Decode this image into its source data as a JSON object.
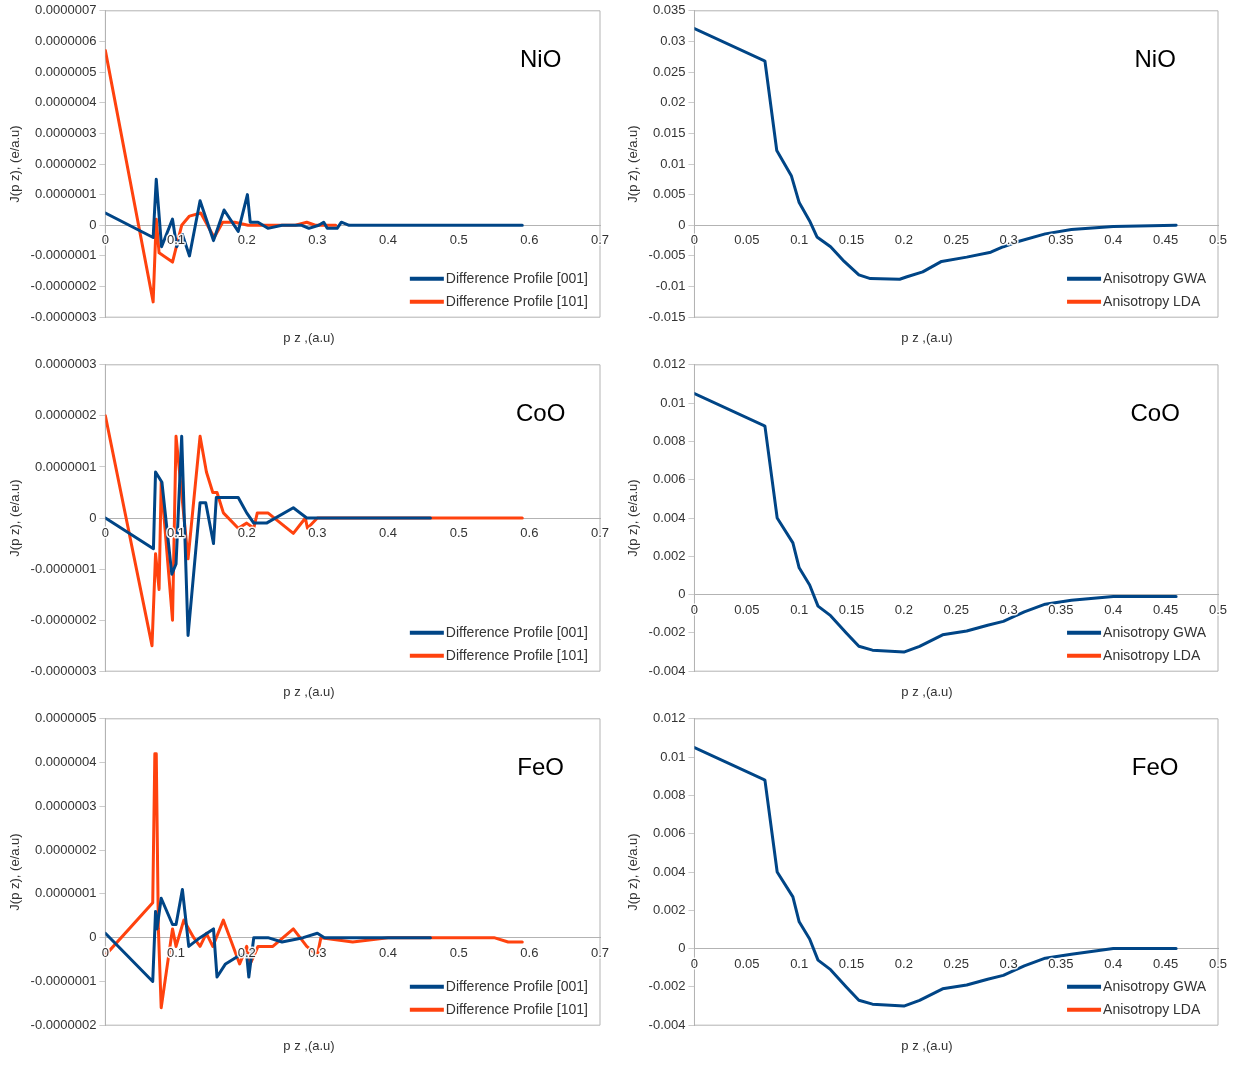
{
  "chart_data": [
    {
      "type": "line",
      "title": "NiO",
      "xlabel": "p z ,(a.u)",
      "ylabel": "J(p z), (e/a.u)",
      "xlim": [
        0,
        0.7
      ],
      "xticks": [
        0,
        0.1,
        0.2,
        0.3,
        0.4,
        0.5,
        0.6,
        0.7
      ],
      "ylim": [
        -3e-07,
        7e-07
      ],
      "yticks": [
        {
          "value": -3e-07,
          "label": "-0.0000003"
        },
        {
          "value": -2e-07,
          "label": "-0.0000002"
        },
        {
          "value": -1e-07,
          "label": "-0.0000001"
        },
        0,
        {
          "value": 1e-07,
          "label": "0.0000001"
        },
        {
          "value": 2e-07,
          "label": "0.0000002"
        },
        {
          "value": 3e-07,
          "label": "0.0000003"
        },
        {
          "value": 4e-07,
          "label": "0.0000004"
        },
        {
          "value": 5e-07,
          "label": "0.0000005"
        },
        {
          "value": 6e-07,
          "label": "0.0000006"
        },
        {
          "value": 7e-07,
          "label": "0.0000007"
        }
      ],
      "legend": "bottom right",
      "marker": "none",
      "series": [
        {
          "name": "Difference Profile [001]",
          "color": "#004586",
          "x": [
            0,
            0.0676,
            0.072,
            0.0795,
            0.095,
            0.101,
            0.109,
            0.119,
            0.134,
            0.153,
            0.168,
            0.188,
            0.201,
            0.205,
            0.216,
            0.23,
            0.25,
            0.278,
            0.288,
            0.302,
            0.309,
            0.314,
            0.328,
            0.334,
            0.345,
            0.59
          ],
          "values": [
            4e-08,
            -4e-08,
            1.5e-07,
            -7e-08,
            2e-08,
            -7e-08,
            -3e-08,
            -1e-07,
            8e-08,
            -5e-08,
            5e-08,
            -2e-08,
            1e-07,
            1e-08,
            1e-08,
            -1e-08,
            0,
            0,
            -1e-08,
            0,
            1e-08,
            -1e-08,
            -1e-08,
            1e-08,
            0,
            0
          ]
        },
        {
          "name": "Difference Profile [101]",
          "color": "#ff420e",
          "x": [
            0,
            0.0676,
            0.072,
            0.076,
            0.095,
            0.108,
            0.119,
            0.135,
            0.154,
            0.166,
            0.183,
            0.202,
            0.221,
            0.23,
            0.269,
            0.285,
            0.297,
            0.316,
            0.326
          ],
          "values": [
            5.7e-07,
            -2.5e-07,
            2e-08,
            -9e-08,
            -1.2e-07,
            0,
            3e-08,
            4e-08,
            -4e-08,
            1e-08,
            1e-08,
            0,
            0,
            0,
            0,
            1e-08,
            0,
            0,
            0
          ]
        }
      ]
    },
    {
      "type": "line",
      "title": "NiO",
      "xlabel": "p z ,(a.u)",
      "ylabel": "J(p z), (e/a.u)",
      "xlim": [
        0,
        0.5
      ],
      "xticks": [
        0,
        0.05,
        0.1,
        0.15,
        0.2,
        0.25,
        0.3,
        0.35,
        0.4,
        0.45,
        0.5
      ],
      "ylim": [
        -0.015,
        0.035
      ],
      "yticks": [
        -0.015,
        -0.01,
        -0.005,
        0,
        0.005,
        0.01,
        0.015,
        0.02,
        0.025,
        0.03,
        0.035
      ],
      "legend": "bottom right",
      "marker": "none",
      "series": [
        {
          "name": "Anisotropy GWA",
          "color": "#004586",
          "x": [
            0,
            0.0673,
            0.0786,
            0.0925,
            0.1,
            0.11,
            0.117,
            0.13,
            0.143,
            0.157,
            0.168,
            0.196,
            0.203,
            0.218,
            0.236,
            0.26,
            0.283,
            0.295,
            0.31,
            0.335,
            0.36,
            0.4,
            0.46
          ],
          "values": [
            0.0321,
            0.0268,
            0.0122,
            0.0081,
            0.0037,
            0.0007,
            -0.0019,
            -0.0035,
            -0.0059,
            -0.0081,
            -0.0087,
            -0.0088,
            -0.0084,
            -0.0076,
            -0.0059,
            -0.0052,
            -0.0044,
            -0.0035,
            -0.0026,
            -0.0014,
            -0.0007,
            -0.0002,
            0
          ]
        },
        {
          "name": "Anisotropy LDA",
          "color": "#ff420e"
        }
      ]
    },
    {
      "type": "line",
      "title": "CoO",
      "xlabel": "p z ,(a.u)",
      "ylabel": "J(p z), (e/a.u)",
      "xlim": [
        0,
        0.7
      ],
      "xticks": [
        0,
        0.1,
        0.2,
        0.3,
        0.4,
        0.5,
        0.6,
        0.7
      ],
      "ylim": [
        -3e-07,
        3e-07
      ],
      "yticks": [
        {
          "value": -3e-07,
          "label": "-0.0000003"
        },
        {
          "value": -2e-07,
          "label": "-0.0000002"
        },
        {
          "value": -1e-07,
          "label": "-0.0000001"
        },
        0,
        {
          "value": 1e-07,
          "label": "0.0000001"
        },
        {
          "value": 2e-07,
          "label": "0.0000002"
        },
        {
          "value": 3e-07,
          "label": "0.0000003"
        }
      ],
      "legend": "bottom right",
      "marker": "none",
      "series": [
        {
          "name": "Difference Profile [001]",
          "color": "#004586",
          "x": [
            0,
            0.068,
            0.071,
            0.08,
            0.094,
            0.1,
            0.108,
            0.117,
            0.134,
            0.142,
            0.153,
            0.157,
            0.168,
            0.188,
            0.2,
            0.21,
            0.228,
            0.266,
            0.285,
            0.3,
            0.33,
            0.35,
            0.46
          ],
          "values": [
            0,
            -6e-08,
            9e-08,
            7e-08,
            -1.1e-07,
            -9e-08,
            1.6e-07,
            -2.3e-07,
            3e-08,
            3e-08,
            -5e-08,
            4e-08,
            4e-08,
            4e-08,
            1e-08,
            -1e-08,
            -1e-08,
            2e-08,
            0,
            0,
            0,
            0,
            0
          ]
        },
        {
          "name": "Difference Profile [101]",
          "color": "#ff420e",
          "x": [
            0,
            0.066,
            0.071,
            0.076,
            0.079,
            0.095,
            0.1,
            0.117,
            0.134,
            0.143,
            0.152,
            0.158,
            0.167,
            0.188,
            0.2,
            0.21,
            0.215,
            0.23,
            0.266,
            0.283,
            0.286,
            0.3,
            0.35,
            0.38,
            0.46,
            0.59
          ],
          "values": [
            2e-07,
            -2.5e-07,
            -7e-08,
            -1.4e-07,
            7e-08,
            -2e-07,
            1.6e-07,
            -8e-08,
            1.6e-07,
            9e-08,
            5e-08,
            5e-08,
            1e-08,
            -2e-08,
            -1e-08,
            -2e-08,
            1e-08,
            1e-08,
            -3e-08,
            0,
            -2e-08,
            0,
            0,
            0,
            0,
            0
          ]
        }
      ]
    },
    {
      "type": "line",
      "title": "CoO",
      "xlabel": "p z ,(a.u)",
      "ylabel": "J(p z), (e/a.u)",
      "xlim": [
        0,
        0.5
      ],
      "xticks": [
        0,
        0.05,
        0.1,
        0.15,
        0.2,
        0.25,
        0.3,
        0.35,
        0.4,
        0.45,
        0.5
      ],
      "ylim": [
        -0.004,
        0.012
      ],
      "yticks": [
        -0.004,
        -0.002,
        0,
        0.002,
        0.004,
        0.006,
        0.008,
        0.01,
        0.012
      ],
      "legend": "bottom right",
      "marker": "none",
      "series": [
        {
          "name": "Anisotropy GWA",
          "color": "#004586",
          "x": [
            0,
            0.0673,
            0.079,
            0.094,
            0.1,
            0.11,
            0.118,
            0.13,
            0.145,
            0.157,
            0.17,
            0.2,
            0.215,
            0.237,
            0.26,
            0.28,
            0.295,
            0.315,
            0.335,
            0.36,
            0.4,
            0.46
          ],
          "values": [
            0.0105,
            0.0088,
            0.004,
            0.0027,
            0.0014,
            0.0005,
            -0.0006,
            -0.0011,
            -0.002,
            -0.0027,
            -0.0029,
            -0.003,
            -0.0027,
            -0.0021,
            -0.0019,
            -0.0016,
            -0.0014,
            -0.0009,
            -0.0005,
            -0.0003,
            -0.0001,
            -0.0001
          ]
        },
        {
          "name": "Anisotropy LDA",
          "color": "#ff420e"
        }
      ]
    },
    {
      "type": "line",
      "title": "FeO",
      "xlabel": "p z ,(a.u)",
      "ylabel": "J(p z), (e/a.u)",
      "xlim": [
        0,
        0.7
      ],
      "xticks": [
        0,
        0.1,
        0.2,
        0.3,
        0.4,
        0.5,
        0.6,
        0.7
      ],
      "ylim": [
        -2e-07,
        5e-07
      ],
      "yticks": [
        {
          "value": -2e-07,
          "label": "-0.0000002"
        },
        {
          "value": -1e-07,
          "label": "-0.0000001"
        },
        0,
        {
          "value": 1e-07,
          "label": "0.0000001"
        },
        {
          "value": 2e-07,
          "label": "0.0000002"
        },
        {
          "value": 3e-07,
          "label": "0.0000003"
        },
        {
          "value": 4e-07,
          "label": "0.0000004"
        },
        {
          "value": 5e-07,
          "label": "0.0000005"
        }
      ],
      "legend": "bottom right",
      "marker": "none",
      "series": [
        {
          "name": "Difference Profile [001]",
          "color": "#004586",
          "x": [
            0,
            0.067,
            0.071,
            0.073,
            0.079,
            0.095,
            0.1,
            0.109,
            0.118,
            0.134,
            0.153,
            0.158,
            0.17,
            0.19,
            0.2,
            0.203,
            0.21,
            0.23,
            0.25,
            0.28,
            0.3,
            0.31,
            0.46
          ],
          "values": [
            1e-08,
            -1e-07,
            6e-08,
            2e-08,
            9e-08,
            3e-08,
            3e-08,
            1.1e-07,
            -2e-08,
            0,
            2e-08,
            -9e-08,
            -6e-08,
            -4e-08,
            -4e-08,
            -9e-08,
            0,
            0,
            -1e-08,
            0,
            1e-08,
            0,
            0
          ]
        },
        {
          "name": "Difference Profile [101]",
          "color": "#ff420e",
          "x": [
            0,
            0.067,
            0.07,
            0.072,
            0.075,
            0.079,
            0.095,
            0.1,
            0.111,
            0.125,
            0.134,
            0.143,
            0.152,
            0.167,
            0.19,
            0.2,
            0.205,
            0.216,
            0.228,
            0.237,
            0.266,
            0.285,
            0.3,
            0.305,
            0.35,
            0.4,
            0.5,
            0.55,
            0.57,
            0.59
          ],
          "values": [
            -4e-08,
            8e-08,
            4.2e-07,
            4.2e-07,
            2e-08,
            -1.6e-07,
            2e-08,
            -2e-08,
            4e-08,
            0,
            -2e-08,
            1e-08,
            -2e-08,
            4e-08,
            -6e-08,
            -2e-08,
            -6e-08,
            -2e-08,
            -2e-08,
            -2e-08,
            2e-08,
            -2e-08,
            -4e-08,
            0,
            -1e-08,
            0,
            0,
            0,
            -1e-08,
            -1e-08
          ]
        }
      ]
    },
    {
      "type": "line",
      "title": "FeO",
      "xlabel": "p z ,(a.u)",
      "ylabel": "J(p z), (e/a.u)",
      "xlim": [
        0,
        0.5
      ],
      "xticks": [
        0,
        0.05,
        0.1,
        0.15,
        0.2,
        0.25,
        0.3,
        0.35,
        0.4,
        0.45,
        0.5
      ],
      "ylim": [
        -0.004,
        0.012
      ],
      "yticks": [
        -0.004,
        -0.002,
        0,
        0.002,
        0.004,
        0.006,
        0.008,
        0.01,
        0.012
      ],
      "legend": "bottom right",
      "marker": "none",
      "series": [
        {
          "name": "Anisotropy GWA",
          "color": "#004586",
          "x": [
            0,
            0.0673,
            0.079,
            0.094,
            0.1,
            0.11,
            0.118,
            0.13,
            0.145,
            0.157,
            0.17,
            0.2,
            0.215,
            0.237,
            0.26,
            0.28,
            0.295,
            0.315,
            0.335,
            0.36,
            0.4,
            0.46
          ],
          "values": [
            0.0105,
            0.0088,
            0.004,
            0.0027,
            0.0014,
            0.0005,
            -0.0006,
            -0.0011,
            -0.002,
            -0.0027,
            -0.0029,
            -0.003,
            -0.0027,
            -0.0021,
            -0.0019,
            -0.0016,
            -0.0014,
            -0.0009,
            -0.0005,
            -0.0003,
            0,
            0
          ]
        },
        {
          "name": "Anisotropy LDA",
          "color": "#ff420e"
        }
      ]
    }
  ]
}
